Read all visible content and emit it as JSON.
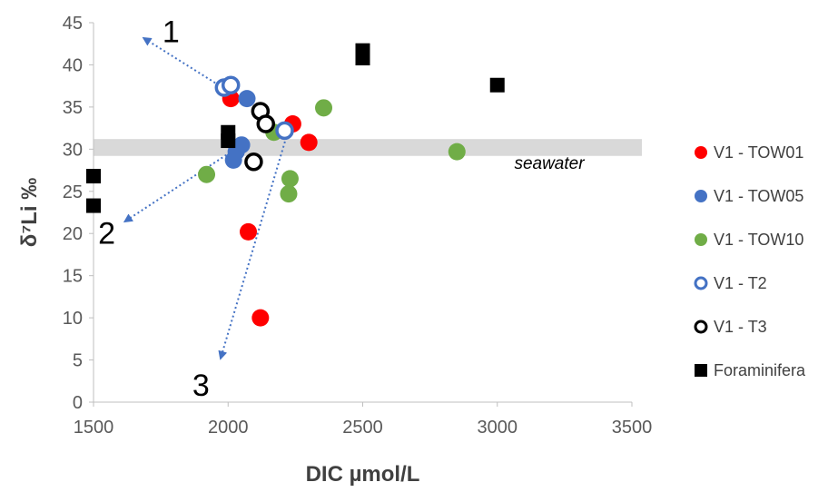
{
  "chart_data": {
    "type": "scatter",
    "xlabel": "DIC µmol/L",
    "ylabel": "δ⁷Li ‰",
    "xlim": [
      1500,
      3500
    ],
    "ylim": [
      0,
      45
    ],
    "xticks": [
      "1500",
      "2000",
      "2500",
      "3000",
      "3500"
    ],
    "yticks": [
      "0",
      "5",
      "10",
      "15",
      "20",
      "25",
      "30",
      "35",
      "40",
      "45"
    ],
    "grid": false,
    "legend_position": "right",
    "seawater_band": {
      "label": "seawater",
      "y_range": [
        29.2,
        31.2
      ]
    },
    "arrows": [
      {
        "label": "1",
        "from": [
          1995,
          37
        ],
        "to": [
          1695,
          43
        ]
      },
      {
        "label": "2",
        "from": [
          2050,
          30.5
        ],
        "to": [
          1625,
          21.6
        ]
      },
      {
        "label": "3",
        "from": [
          2240,
          34
        ],
        "to": [
          1975,
          5.5
        ]
      }
    ],
    "series": [
      {
        "name": "V1 - TOW01",
        "color": "#FF0000",
        "marker": "circle",
        "filled": true,
        "points": [
          [
            2010,
            36
          ],
          [
            2240,
            33
          ],
          [
            2300,
            30.8
          ],
          [
            2075,
            20.2
          ],
          [
            2120,
            10
          ]
        ]
      },
      {
        "name": "V1 - TOW05",
        "color": "#4472C4",
        "marker": "circle",
        "filled": true,
        "points": [
          [
            2070,
            36
          ],
          [
            2050,
            30.5
          ],
          [
            2030,
            29.7
          ],
          [
            2020,
            28.7
          ]
        ]
      },
      {
        "name": "V1 - TOW10",
        "color": "#70AD47",
        "marker": "circle",
        "filled": true,
        "points": [
          [
            2355,
            34.9
          ],
          [
            2170,
            32
          ],
          [
            2230,
            26.5
          ],
          [
            2225,
            24.7
          ],
          [
            1920,
            27
          ],
          [
            2850,
            29.7
          ]
        ]
      },
      {
        "name": "V1 - T2",
        "color": "#4472C4",
        "marker": "circle",
        "filled": false,
        "points": [
          [
            1985,
            37.3
          ],
          [
            2010,
            37.6
          ],
          [
            2210,
            32.2
          ]
        ]
      },
      {
        "name": "V1 - T3",
        "color": "#000000",
        "marker": "circle",
        "filled": false,
        "points": [
          [
            2120,
            34.5
          ],
          [
            2140,
            33
          ],
          [
            2095,
            28.5
          ]
        ]
      },
      {
        "name": "Foraminifera",
        "color": "#000000",
        "marker": "square",
        "filled": true,
        "points": [
          [
            1500,
            26.8
          ],
          [
            1500,
            23.3
          ],
          [
            2000,
            32
          ],
          [
            2000,
            31
          ],
          [
            2500,
            41.7
          ],
          [
            2500,
            40.8
          ],
          [
            3000,
            37.6
          ]
        ]
      }
    ]
  }
}
